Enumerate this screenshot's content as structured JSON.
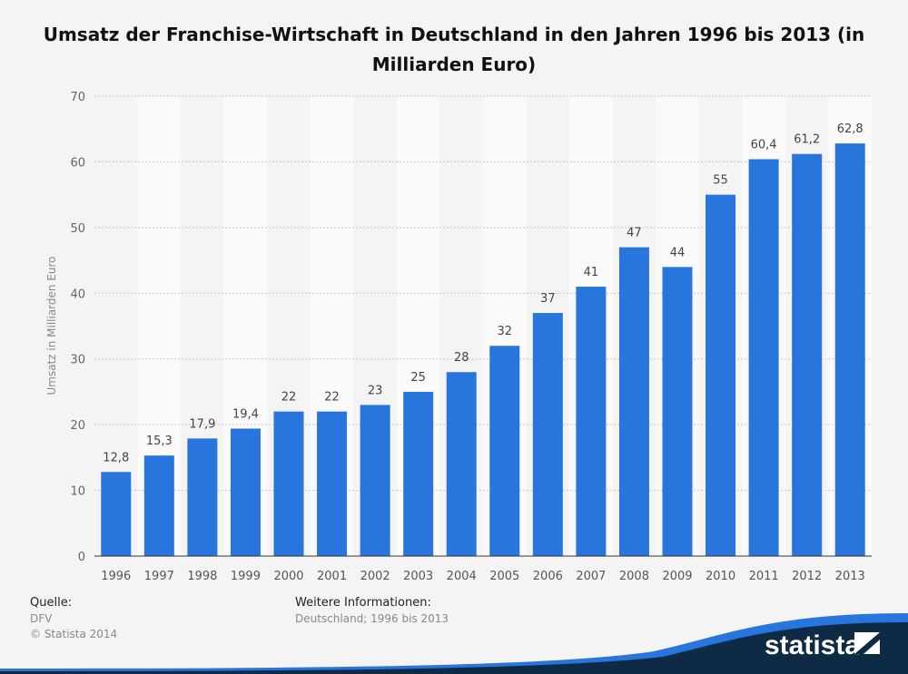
{
  "chart_data": {
    "type": "bar",
    "title": "Umsatz der Franchise-Wirtschaft in Deutschland in den Jahren 1996 bis 2013 (in Milliarden Euro)",
    "xlabel": "",
    "ylabel": "Umsatz in Milliarden Euro",
    "ylim": [
      0,
      70
    ],
    "yticks": [
      0,
      10,
      20,
      30,
      40,
      50,
      60,
      70
    ],
    "grid": true,
    "bar_color": "#2876dd",
    "categories": [
      "1996",
      "1997",
      "1998",
      "1999",
      "2000",
      "2001",
      "2002",
      "2003",
      "2004",
      "2005",
      "2006",
      "2007",
      "2008",
      "2009",
      "2010",
      "2011",
      "2012",
      "2013"
    ],
    "values": [
      12.8,
      15.3,
      17.9,
      19.4,
      22,
      22,
      23,
      25,
      28,
      32,
      37,
      41,
      47,
      44,
      55,
      60.4,
      61.2,
      62.8
    ],
    "data_labels": [
      "12,8",
      "15,3",
      "17,9",
      "19,4",
      "22",
      "22",
      "23",
      "25",
      "28",
      "32",
      "37",
      "41",
      "47",
      "44",
      "55",
      "60,4",
      "61,2",
      "62,8"
    ]
  },
  "footer": {
    "source_heading": "Quelle:",
    "source_name": "DFV",
    "copyright": "© Statista 2014",
    "info_heading": "Weitere Informationen:",
    "info_text": "Deutschland; 1996 bis 2013",
    "logo_text": "statista"
  }
}
